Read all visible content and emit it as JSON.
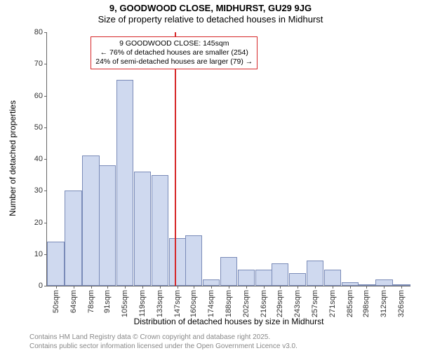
{
  "title": "9, GOODWOOD CLOSE, MIDHURST, GU29 9JG",
  "subtitle": "Size of property relative to detached houses in Midhurst",
  "ylabel": "Number of detached properties",
  "xlabel": "Distribution of detached houses by size in Midhurst",
  "chart": {
    "type": "histogram",
    "x_min": 43,
    "x_max": 333,
    "y_min": 0,
    "y_max": 80,
    "y_ticks": [
      0,
      10,
      20,
      30,
      40,
      50,
      60,
      70,
      80
    ],
    "x_ticks": [
      {
        "v": 50,
        "label": "50sqm"
      },
      {
        "v": 64,
        "label": "64sqm"
      },
      {
        "v": 78,
        "label": "78sqm"
      },
      {
        "v": 91,
        "label": "91sqm"
      },
      {
        "v": 105,
        "label": "105sqm"
      },
      {
        "v": 119,
        "label": "119sqm"
      },
      {
        "v": 133,
        "label": "133sqm"
      },
      {
        "v": 147,
        "label": "147sqm"
      },
      {
        "v": 160,
        "label": "160sqm"
      },
      {
        "v": 174,
        "label": "174sqm"
      },
      {
        "v": 188,
        "label": "188sqm"
      },
      {
        "v": 202,
        "label": "202sqm"
      },
      {
        "v": 216,
        "label": "216sqm"
      },
      {
        "v": 229,
        "label": "229sqm"
      },
      {
        "v": 243,
        "label": "243sqm"
      },
      {
        "v": 257,
        "label": "257sqm"
      },
      {
        "v": 271,
        "label": "271sqm"
      },
      {
        "v": 285,
        "label": "285sqm"
      },
      {
        "v": 298,
        "label": "298sqm"
      },
      {
        "v": 312,
        "label": "312sqm"
      },
      {
        "v": 326,
        "label": "326sqm"
      }
    ],
    "bin_width": 13.7,
    "bars": [
      {
        "x": 50,
        "y": 14
      },
      {
        "x": 64,
        "y": 30
      },
      {
        "x": 78,
        "y": 41
      },
      {
        "x": 91,
        "y": 38
      },
      {
        "x": 105,
        "y": 65
      },
      {
        "x": 119,
        "y": 36
      },
      {
        "x": 133,
        "y": 35
      },
      {
        "x": 147,
        "y": 15
      },
      {
        "x": 160,
        "y": 16
      },
      {
        "x": 174,
        "y": 2
      },
      {
        "x": 188,
        "y": 9
      },
      {
        "x": 202,
        "y": 5
      },
      {
        "x": 216,
        "y": 5
      },
      {
        "x": 229,
        "y": 7
      },
      {
        "x": 243,
        "y": 4
      },
      {
        "x": 257,
        "y": 8
      },
      {
        "x": 271,
        "y": 5
      },
      {
        "x": 285,
        "y": 1
      },
      {
        "x": 298,
        "y": 0
      },
      {
        "x": 312,
        "y": 2
      },
      {
        "x": 326,
        "y": 0
      }
    ],
    "bar_fill": "#cfd9ef",
    "bar_stroke": "#7a8bb8",
    "marker_x": 145,
    "marker_color": "#d62728"
  },
  "annotation": {
    "line1": "9 GOODWOOD CLOSE: 145sqm",
    "line2": "← 76% of detached houses are smaller (254)",
    "line3": "24% of semi-detached houses are larger (79) →"
  },
  "footer1": "Contains HM Land Registry data © Crown copyright and database right 2025.",
  "footer2": "Contains public sector information licensed under the Open Government Licence v3.0."
}
